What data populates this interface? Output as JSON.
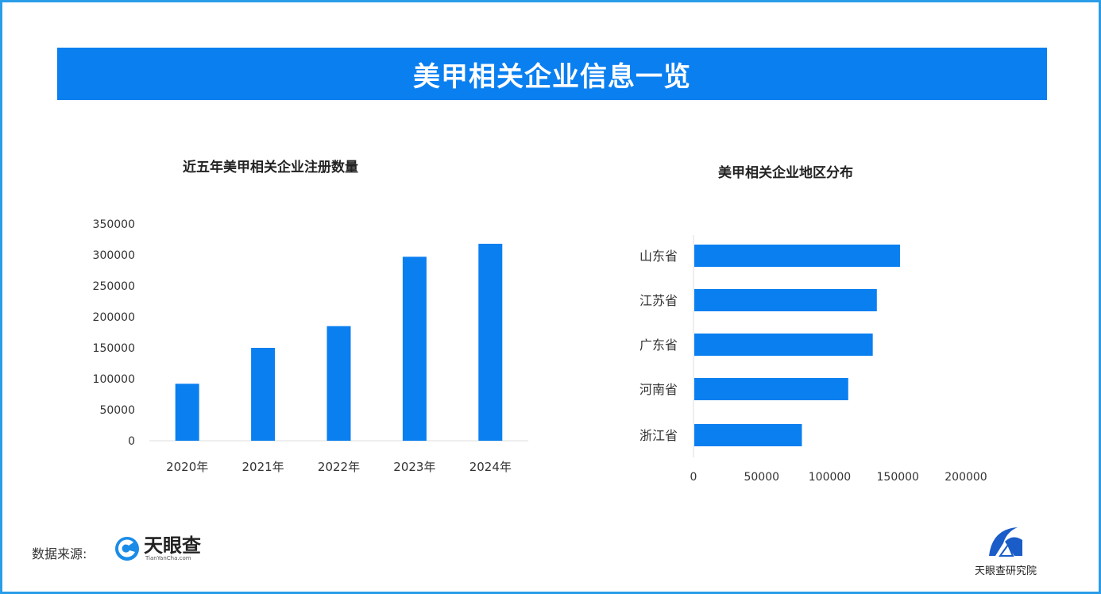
{
  "banner": {
    "title": "美甲相关企业信息一览"
  },
  "chart_data": [
    {
      "type": "bar",
      "title": "近五年美甲相关企业注册数量",
      "categories": [
        "2020年",
        "2021年",
        "2022年",
        "2023年",
        "2024年"
      ],
      "values": [
        92000,
        150000,
        185000,
        297000,
        318000
      ],
      "ylim": [
        0,
        350000
      ],
      "yticks": [
        0,
        50000,
        100000,
        150000,
        200000,
        250000,
        300000,
        350000
      ],
      "grid": false,
      "color": "#0a7ff0"
    },
    {
      "type": "bar",
      "orientation": "horizontal",
      "title": "美甲相关企业地区分布",
      "categories": [
        "山东省",
        "江苏省",
        "广东省",
        "河南省",
        "浙江省"
      ],
      "values": [
        151000,
        134000,
        131000,
        113000,
        79000
      ],
      "xlim": [
        0,
        200000
      ],
      "xticks": [
        0,
        50000,
        100000,
        150000,
        200000
      ],
      "grid": false,
      "color": "#0a7ff0"
    }
  ],
  "footer": {
    "source_label": "数据来源:",
    "source_logo_text": "天眼查",
    "source_logo_url": "TianYanCha.com",
    "institute_logo_text": "天眼查研究院"
  }
}
